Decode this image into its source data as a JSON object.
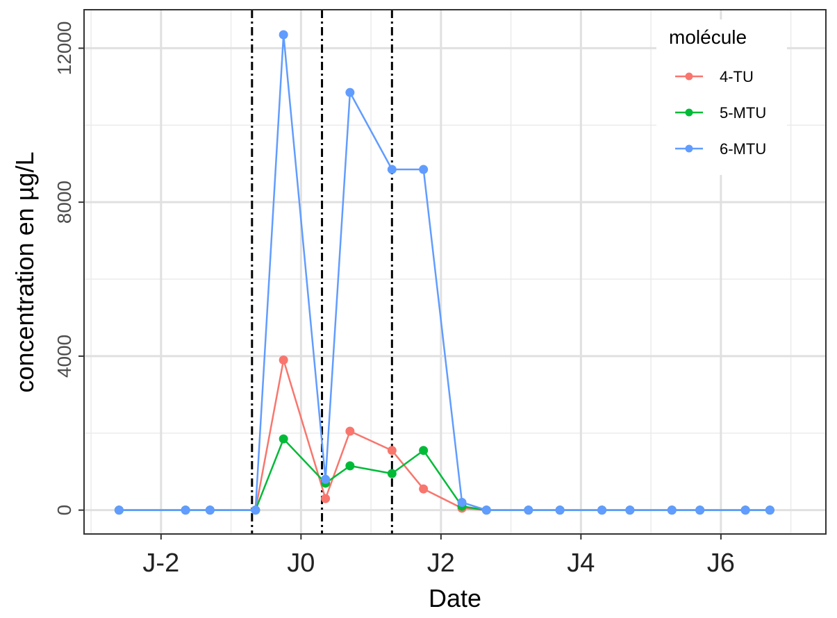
{
  "chart_data": {
    "type": "line",
    "xlabel": "Date",
    "ylabel": "concentration en µg/L",
    "x_tick_labels": [
      "J-2",
      "J0",
      "J2",
      "J4",
      "J6"
    ],
    "x_tick_values": [
      -2,
      0,
      2,
      4,
      6
    ],
    "y_tick_labels": [
      "0",
      "4000",
      "8000",
      "12000"
    ],
    "y_tick_values": [
      0,
      4000,
      8000,
      12000
    ],
    "xlim": [
      -3.1,
      7.5
    ],
    "ylim": [
      -620,
      13000
    ],
    "grid": true,
    "vlines": [
      -0.7,
      0.3,
      1.3
    ],
    "vline_style": "dot-dash",
    "legend": {
      "title": "molécule",
      "placement": "top-right",
      "entries": [
        "4-TU",
        "5-MTU",
        "6-MTU"
      ]
    },
    "series": [
      {
        "name": "4-TU",
        "color": "#F8766D",
        "x": [
          -2.6,
          -1.65,
          -1.3,
          -0.65,
          -0.25,
          0.35,
          0.7,
          1.3,
          1.75,
          2.3,
          2.65,
          3.25,
          3.7,
          4.3,
          4.7,
          5.3,
          5.7,
          6.35,
          6.7
        ],
        "y": [
          0,
          0,
          0,
          0,
          3900,
          300,
          2050,
          1550,
          550,
          50,
          0,
          0,
          0,
          0,
          0,
          0,
          0,
          0,
          0
        ]
      },
      {
        "name": "5-MTU",
        "color": "#00BA38",
        "x": [
          -2.6,
          -1.65,
          -1.3,
          -0.65,
          -0.25,
          0.35,
          0.7,
          1.3,
          1.75,
          2.3,
          2.65,
          3.25,
          3.7,
          4.3,
          4.7,
          5.3,
          5.7,
          6.35,
          6.7
        ],
        "y": [
          0,
          0,
          0,
          0,
          1850,
          700,
          1150,
          950,
          1550,
          100,
          0,
          0,
          0,
          0,
          0,
          0,
          0,
          0,
          0
        ]
      },
      {
        "name": "6-MTU",
        "color": "#619CFF",
        "x": [
          -2.6,
          -1.65,
          -1.3,
          -0.65,
          -0.25,
          0.35,
          0.7,
          1.3,
          1.75,
          2.3,
          2.65,
          3.25,
          3.7,
          4.3,
          4.7,
          5.3,
          5.7,
          6.35,
          6.7
        ],
        "y": [
          0,
          0,
          0,
          0,
          12350,
          800,
          10850,
          8850,
          8850,
          200,
          0,
          0,
          0,
          0,
          0,
          0,
          0,
          0,
          0
        ]
      }
    ]
  }
}
